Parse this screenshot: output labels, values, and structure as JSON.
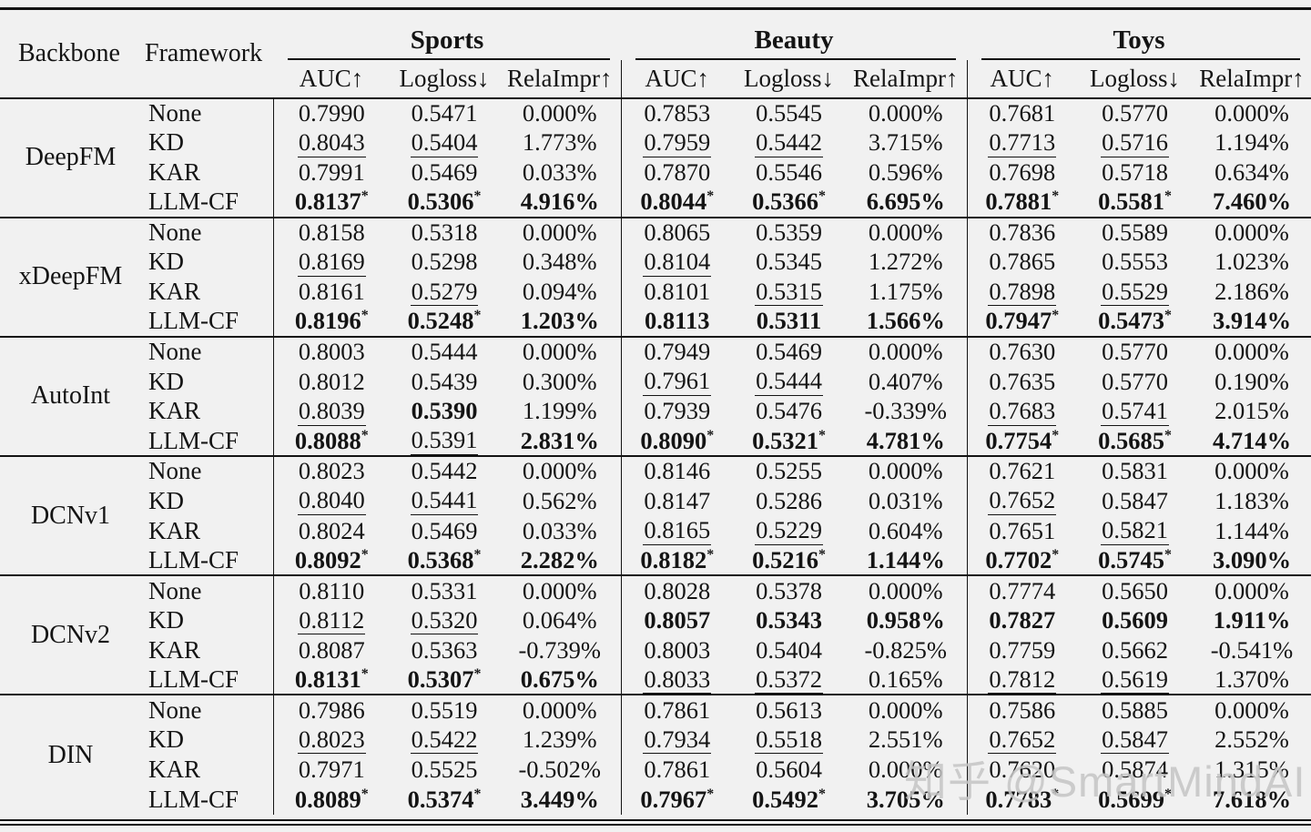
{
  "page": {
    "background": "#f1f1f1",
    "text_color": "#141414",
    "rule_color": "#141414"
  },
  "header": {
    "backbone": "Backbone",
    "framework": "Framework",
    "groups": [
      {
        "label": "Sports"
      },
      {
        "label": "Beauty"
      },
      {
        "label": "Toys"
      }
    ],
    "metrics": [
      "AUC↑",
      "Logloss↓",
      "RelaImpr↑"
    ]
  },
  "blocks": [
    {
      "backbone": "DeepFM",
      "rows": [
        {
          "framework": "None",
          "cells": [
            {
              "v": "0.7990"
            },
            {
              "v": "0.5471"
            },
            {
              "v": "0.000%"
            },
            {
              "v": "0.7853"
            },
            {
              "v": "0.5545"
            },
            {
              "v": "0.000%"
            },
            {
              "v": "0.7681"
            },
            {
              "v": "0.5770"
            },
            {
              "v": "0.000%"
            }
          ]
        },
        {
          "framework": "KD",
          "cells": [
            {
              "v": "0.8043",
              "s": "u"
            },
            {
              "v": "0.5404",
              "s": "u"
            },
            {
              "v": "1.773%"
            },
            {
              "v": "0.7959",
              "s": "u"
            },
            {
              "v": "0.5442",
              "s": "u"
            },
            {
              "v": "3.715%"
            },
            {
              "v": "0.7713",
              "s": "u"
            },
            {
              "v": "0.5716",
              "s": "u"
            },
            {
              "v": "1.194%"
            }
          ]
        },
        {
          "framework": "KAR",
          "cells": [
            {
              "v": "0.7991"
            },
            {
              "v": "0.5469"
            },
            {
              "v": "0.033%"
            },
            {
              "v": "0.7870"
            },
            {
              "v": "0.5546"
            },
            {
              "v": "0.596%"
            },
            {
              "v": "0.7698"
            },
            {
              "v": "0.5718"
            },
            {
              "v": "0.634%"
            }
          ]
        },
        {
          "framework": "LLM-CF",
          "cells": [
            {
              "v": "0.8137",
              "s": "b",
              "star": true
            },
            {
              "v": "0.5306",
              "s": "b",
              "star": true
            },
            {
              "v": "4.916%",
              "s": "b"
            },
            {
              "v": "0.8044",
              "s": "b",
              "star": true
            },
            {
              "v": "0.5366",
              "s": "b",
              "star": true
            },
            {
              "v": "6.695%",
              "s": "b"
            },
            {
              "v": "0.7881",
              "s": "b",
              "star": true
            },
            {
              "v": "0.5581",
              "s": "b",
              "star": true
            },
            {
              "v": "7.460%",
              "s": "b"
            }
          ]
        }
      ]
    },
    {
      "backbone": "xDeepFM",
      "rows": [
        {
          "framework": "None",
          "cells": [
            {
              "v": "0.8158"
            },
            {
              "v": "0.5318"
            },
            {
              "v": "0.000%"
            },
            {
              "v": "0.8065"
            },
            {
              "v": "0.5359"
            },
            {
              "v": "0.000%"
            },
            {
              "v": "0.7836"
            },
            {
              "v": "0.5589"
            },
            {
              "v": "0.000%"
            }
          ]
        },
        {
          "framework": "KD",
          "cells": [
            {
              "v": "0.8169",
              "s": "u"
            },
            {
              "v": "0.5298"
            },
            {
              "v": "0.348%"
            },
            {
              "v": "0.8104",
              "s": "u"
            },
            {
              "v": "0.5345"
            },
            {
              "v": "1.272%"
            },
            {
              "v": "0.7865"
            },
            {
              "v": "0.5553"
            },
            {
              "v": "1.023%"
            }
          ]
        },
        {
          "framework": "KAR",
          "cells": [
            {
              "v": "0.8161"
            },
            {
              "v": "0.5279",
              "s": "u"
            },
            {
              "v": "0.094%"
            },
            {
              "v": "0.8101"
            },
            {
              "v": "0.5315",
              "s": "u"
            },
            {
              "v": "1.175%"
            },
            {
              "v": "0.7898",
              "s": "u"
            },
            {
              "v": "0.5529",
              "s": "u"
            },
            {
              "v": "2.186%"
            }
          ]
        },
        {
          "framework": "LLM-CF",
          "cells": [
            {
              "v": "0.8196",
              "s": "b",
              "star": true
            },
            {
              "v": "0.5248",
              "s": "b",
              "star": true
            },
            {
              "v": "1.203%",
              "s": "b"
            },
            {
              "v": "0.8113",
              "s": "b"
            },
            {
              "v": "0.5311",
              "s": "b"
            },
            {
              "v": "1.566%",
              "s": "b"
            },
            {
              "v": "0.7947",
              "s": "b",
              "star": true
            },
            {
              "v": "0.5473",
              "s": "b",
              "star": true
            },
            {
              "v": "3.914%",
              "s": "b"
            }
          ]
        }
      ]
    },
    {
      "backbone": "AutoInt",
      "rows": [
        {
          "framework": "None",
          "cells": [
            {
              "v": "0.8003"
            },
            {
              "v": "0.5444"
            },
            {
              "v": "0.000%"
            },
            {
              "v": "0.7949"
            },
            {
              "v": "0.5469"
            },
            {
              "v": "0.000%"
            },
            {
              "v": "0.7630"
            },
            {
              "v": "0.5770"
            },
            {
              "v": "0.000%"
            }
          ]
        },
        {
          "framework": "KD",
          "cells": [
            {
              "v": "0.8012"
            },
            {
              "v": "0.5439"
            },
            {
              "v": "0.300%"
            },
            {
              "v": "0.7961",
              "s": "u"
            },
            {
              "v": "0.5444",
              "s": "u"
            },
            {
              "v": "0.407%"
            },
            {
              "v": "0.7635"
            },
            {
              "v": "0.5770"
            },
            {
              "v": "0.190%"
            }
          ]
        },
        {
          "framework": "KAR",
          "cells": [
            {
              "v": "0.8039",
              "s": "u"
            },
            {
              "v": "0.5390",
              "s": "b"
            },
            {
              "v": "1.199%"
            },
            {
              "v": "0.7939"
            },
            {
              "v": "0.5476"
            },
            {
              "v": "-0.339%"
            },
            {
              "v": "0.7683",
              "s": "u"
            },
            {
              "v": "0.5741",
              "s": "u"
            },
            {
              "v": "2.015%"
            }
          ]
        },
        {
          "framework": "LLM-CF",
          "cells": [
            {
              "v": "0.8088",
              "s": "b",
              "star": true
            },
            {
              "v": "0.5391",
              "s": "u"
            },
            {
              "v": "2.831%",
              "s": "b"
            },
            {
              "v": "0.8090",
              "s": "b",
              "star": true
            },
            {
              "v": "0.5321",
              "s": "b",
              "star": true
            },
            {
              "v": "4.781%",
              "s": "b"
            },
            {
              "v": "0.7754",
              "s": "b",
              "star": true
            },
            {
              "v": "0.5685",
              "s": "b",
              "star": true
            },
            {
              "v": "4.714%",
              "s": "b"
            }
          ]
        }
      ]
    },
    {
      "backbone": "DCNv1",
      "rows": [
        {
          "framework": "None",
          "cells": [
            {
              "v": "0.8023"
            },
            {
              "v": "0.5442"
            },
            {
              "v": "0.000%"
            },
            {
              "v": "0.8146"
            },
            {
              "v": "0.5255"
            },
            {
              "v": "0.000%"
            },
            {
              "v": "0.7621"
            },
            {
              "v": "0.5831"
            },
            {
              "v": "0.000%"
            }
          ]
        },
        {
          "framework": "KD",
          "cells": [
            {
              "v": "0.8040",
              "s": "u"
            },
            {
              "v": "0.5441",
              "s": "u"
            },
            {
              "v": "0.562%"
            },
            {
              "v": "0.8147"
            },
            {
              "v": "0.5286"
            },
            {
              "v": "0.031%"
            },
            {
              "v": "0.7652",
              "s": "u"
            },
            {
              "v": "0.5847"
            },
            {
              "v": "1.183%"
            }
          ]
        },
        {
          "framework": "KAR",
          "cells": [
            {
              "v": "0.8024"
            },
            {
              "v": "0.5469"
            },
            {
              "v": "0.033%"
            },
            {
              "v": "0.8165",
              "s": "u"
            },
            {
              "v": "0.5229",
              "s": "u"
            },
            {
              "v": "0.604%"
            },
            {
              "v": "0.7651"
            },
            {
              "v": "0.5821",
              "s": "u"
            },
            {
              "v": "1.144%"
            }
          ]
        },
        {
          "framework": "LLM-CF",
          "cells": [
            {
              "v": "0.8092",
              "s": "b",
              "star": true
            },
            {
              "v": "0.5368",
              "s": "b",
              "star": true
            },
            {
              "v": "2.282%",
              "s": "b"
            },
            {
              "v": "0.8182",
              "s": "b",
              "star": true
            },
            {
              "v": "0.5216",
              "s": "b",
              "star": true
            },
            {
              "v": "1.144%",
              "s": "b"
            },
            {
              "v": "0.7702",
              "s": "b",
              "star": true
            },
            {
              "v": "0.5745",
              "s": "b",
              "star": true
            },
            {
              "v": "3.090%",
              "s": "b"
            }
          ]
        }
      ]
    },
    {
      "backbone": "DCNv2",
      "rows": [
        {
          "framework": "None",
          "cells": [
            {
              "v": "0.8110"
            },
            {
              "v": "0.5331"
            },
            {
              "v": "0.000%"
            },
            {
              "v": "0.8028"
            },
            {
              "v": "0.5378"
            },
            {
              "v": "0.000%"
            },
            {
              "v": "0.7774"
            },
            {
              "v": "0.5650"
            },
            {
              "v": "0.000%"
            }
          ]
        },
        {
          "framework": "KD",
          "cells": [
            {
              "v": "0.8112",
              "s": "u"
            },
            {
              "v": "0.5320",
              "s": "u"
            },
            {
              "v": "0.064%"
            },
            {
              "v": "0.8057",
              "s": "b"
            },
            {
              "v": "0.5343",
              "s": "b"
            },
            {
              "v": "0.958%",
              "s": "b"
            },
            {
              "v": "0.7827",
              "s": "b"
            },
            {
              "v": "0.5609",
              "s": "b"
            },
            {
              "v": "1.911%",
              "s": "b"
            }
          ]
        },
        {
          "framework": "KAR",
          "cells": [
            {
              "v": "0.8087"
            },
            {
              "v": "0.5363"
            },
            {
              "v": "-0.739%"
            },
            {
              "v": "0.8003"
            },
            {
              "v": "0.5404"
            },
            {
              "v": "-0.825%"
            },
            {
              "v": "0.7759"
            },
            {
              "v": "0.5662"
            },
            {
              "v": "-0.541%"
            }
          ]
        },
        {
          "framework": "LLM-CF",
          "cells": [
            {
              "v": "0.8131",
              "s": "b",
              "star": true
            },
            {
              "v": "0.5307",
              "s": "b",
              "star": true
            },
            {
              "v": "0.675%",
              "s": "b"
            },
            {
              "v": "0.8033",
              "s": "u"
            },
            {
              "v": "0.5372",
              "s": "u"
            },
            {
              "v": "0.165%"
            },
            {
              "v": "0.7812",
              "s": "u"
            },
            {
              "v": "0.5619",
              "s": "u"
            },
            {
              "v": "1.370%"
            }
          ]
        }
      ]
    },
    {
      "backbone": "DIN",
      "rows": [
        {
          "framework": "None",
          "cells": [
            {
              "v": "0.7986"
            },
            {
              "v": "0.5519"
            },
            {
              "v": "0.000%"
            },
            {
              "v": "0.7861"
            },
            {
              "v": "0.5613"
            },
            {
              "v": "0.000%"
            },
            {
              "v": "0.7586"
            },
            {
              "v": "0.5885"
            },
            {
              "v": "0.000%"
            }
          ]
        },
        {
          "framework": "KD",
          "cells": [
            {
              "v": "0.8023",
              "s": "u"
            },
            {
              "v": "0.5422",
              "s": "u"
            },
            {
              "v": "1.239%"
            },
            {
              "v": "0.7934",
              "s": "u"
            },
            {
              "v": "0.5518",
              "s": "u"
            },
            {
              "v": "2.551%"
            },
            {
              "v": "0.7652",
              "s": "u"
            },
            {
              "v": "0.5847",
              "s": "u"
            },
            {
              "v": "2.552%"
            }
          ]
        },
        {
          "framework": "KAR",
          "cells": [
            {
              "v": "0.7971"
            },
            {
              "v": "0.5525"
            },
            {
              "v": "-0.502%"
            },
            {
              "v": "0.7861"
            },
            {
              "v": "0.5604"
            },
            {
              "v": "0.000%"
            },
            {
              "v": "0.7620"
            },
            {
              "v": "0.5874"
            },
            {
              "v": "1.315%"
            }
          ]
        },
        {
          "framework": "LLM-CF",
          "cells": [
            {
              "v": "0.8089",
              "s": "b",
              "star": true
            },
            {
              "v": "0.5374",
              "s": "b",
              "star": true
            },
            {
              "v": "3.449%",
              "s": "b"
            },
            {
              "v": "0.7967",
              "s": "b",
              "star": true
            },
            {
              "v": "0.5492",
              "s": "b",
              "star": true
            },
            {
              "v": "3.705%",
              "s": "b"
            },
            {
              "v": "0.7783",
              "s": "b",
              "star": true
            },
            {
              "v": "0.5699",
              "s": "b",
              "star": true
            },
            {
              "v": "7.618%",
              "s": "b"
            }
          ]
        }
      ]
    }
  ],
  "watermark": {
    "text": "知乎 @SmartMindAI",
    "color": "#c4c4c4"
  }
}
